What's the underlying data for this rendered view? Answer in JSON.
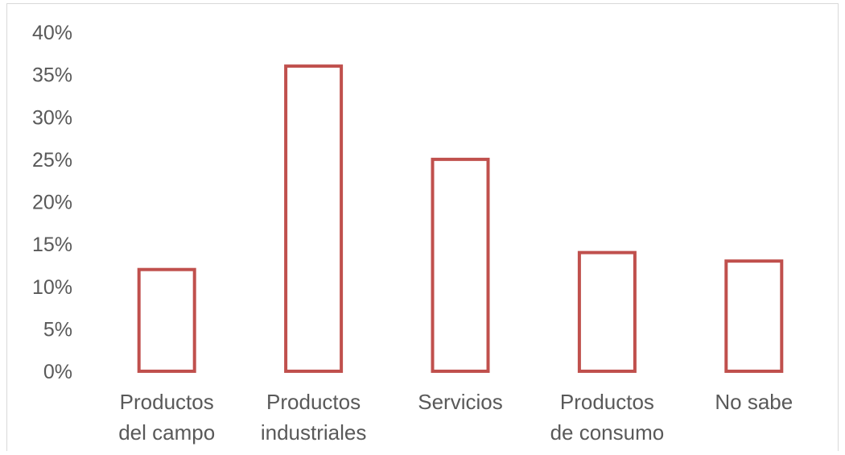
{
  "chart_data": {
    "type": "bar",
    "categories": [
      [
        "Productos",
        "del campo"
      ],
      [
        "Productos",
        "industriales"
      ],
      [
        "Servicios"
      ],
      [
        "Productos",
        "de consumo"
      ],
      [
        "No sabe"
      ]
    ],
    "values": [
      12,
      36,
      25,
      14,
      13
    ],
    "yticks": [
      "0%",
      "5%",
      "10%",
      "15%",
      "20%",
      "25%",
      "30%",
      "35%",
      "40%"
    ],
    "ylim": [
      0,
      40
    ],
    "title": "",
    "xlabel": "",
    "ylabel": "",
    "grid": false,
    "legend": "none",
    "colors": {
      "bar_stroke": "#c0504d",
      "bar_fill": "#ffffff",
      "text": "#595959",
      "frame": "#d9d9d9"
    }
  }
}
